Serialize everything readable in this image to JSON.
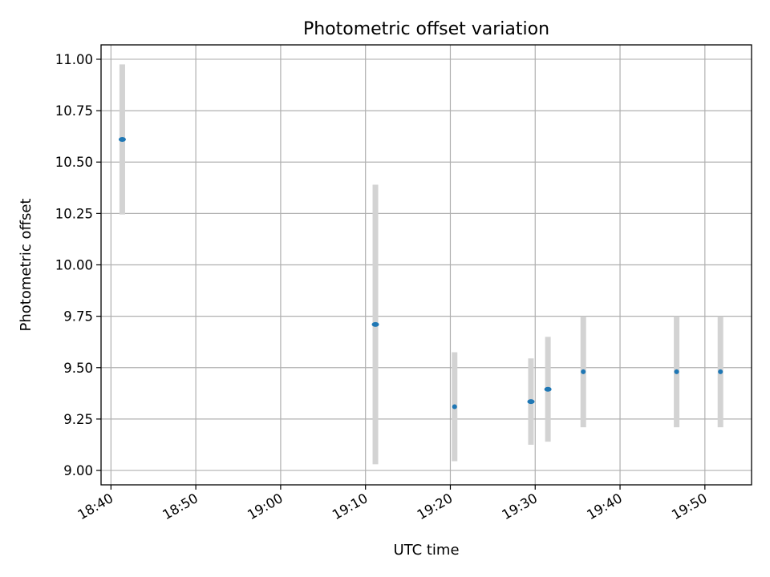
{
  "chart_data": {
    "type": "scatter",
    "title": "Photometric offset variation",
    "xlabel": "UTC time",
    "ylabel": "Photometric offset",
    "xlim": [
      "18:38:50",
      "19:55:30"
    ],
    "ylim": [
      8.93,
      11.07
    ],
    "x_ticks": [
      "18:40",
      "18:50",
      "19:00",
      "19:10",
      "19:20",
      "19:30",
      "19:40",
      "19:50"
    ],
    "y_ticks": [
      9.0,
      9.25,
      9.5,
      9.75,
      10.0,
      10.25,
      10.5,
      10.75,
      11.0
    ],
    "y_tick_labels": [
      "9.00",
      "9.25",
      "9.50",
      "9.75",
      "10.00",
      "10.25",
      "10.50",
      "10.75",
      "11.00"
    ],
    "grid": true,
    "colors": {
      "marker": "#1f77b4",
      "errorbar": "#d3d3d3",
      "grid": "#b0b0b0"
    },
    "series": [
      {
        "points": [
          {
            "x": "18:41:20",
            "y": 10.61,
            "err": 0.365
          },
          {
            "x": "19:11:10",
            "y": 9.71,
            "err": 0.68
          },
          {
            "x": "19:20:30",
            "y": 9.31,
            "err": 0.265
          },
          {
            "x": "19:29:30",
            "y": 9.335,
            "err": 0.21
          },
          {
            "x": "19:31:30",
            "y": 9.395,
            "err": 0.255
          },
          {
            "x": "19:35:40",
            "y": 9.48,
            "err": 0.27
          },
          {
            "x": "19:46:40",
            "y": 9.48,
            "err": 0.27
          },
          {
            "x": "19:51:50",
            "y": 9.48,
            "err": 0.27
          }
        ]
      }
    ]
  }
}
